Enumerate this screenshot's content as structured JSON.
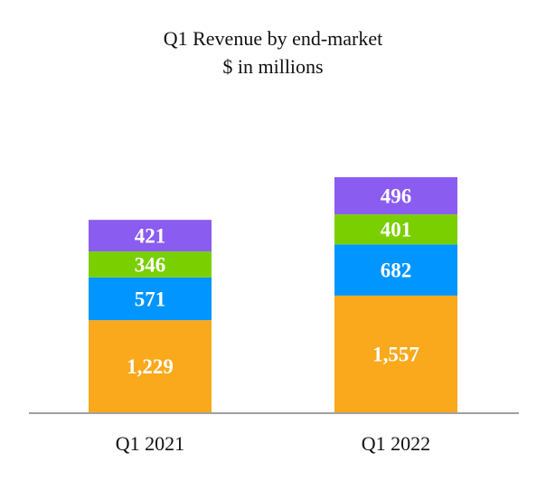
{
  "chart_data": {
    "type": "bar",
    "stacked": true,
    "title": "Q1 Revenue by end-market",
    "subtitle": "$ in millions",
    "categories": [
      "Q1 2021",
      "Q1 2022"
    ],
    "series": [
      {
        "values": [
          1229,
          1557
        ],
        "labels": [
          "1,229",
          "1,557"
        ],
        "color": "#F9A91B"
      },
      {
        "values": [
          571,
          682
        ],
        "labels": [
          "571",
          "682"
        ],
        "color": "#0095FF"
      },
      {
        "values": [
          346,
          401
        ],
        "labels": [
          "346",
          "401"
        ],
        "color": "#7ACF00"
      },
      {
        "values": [
          421,
          496
        ],
        "labels": [
          "421",
          "496"
        ],
        "color": "#8B5CF0"
      }
    ],
    "ylim": [
      0,
      3136
    ],
    "grid": false,
    "legend": "none"
  }
}
